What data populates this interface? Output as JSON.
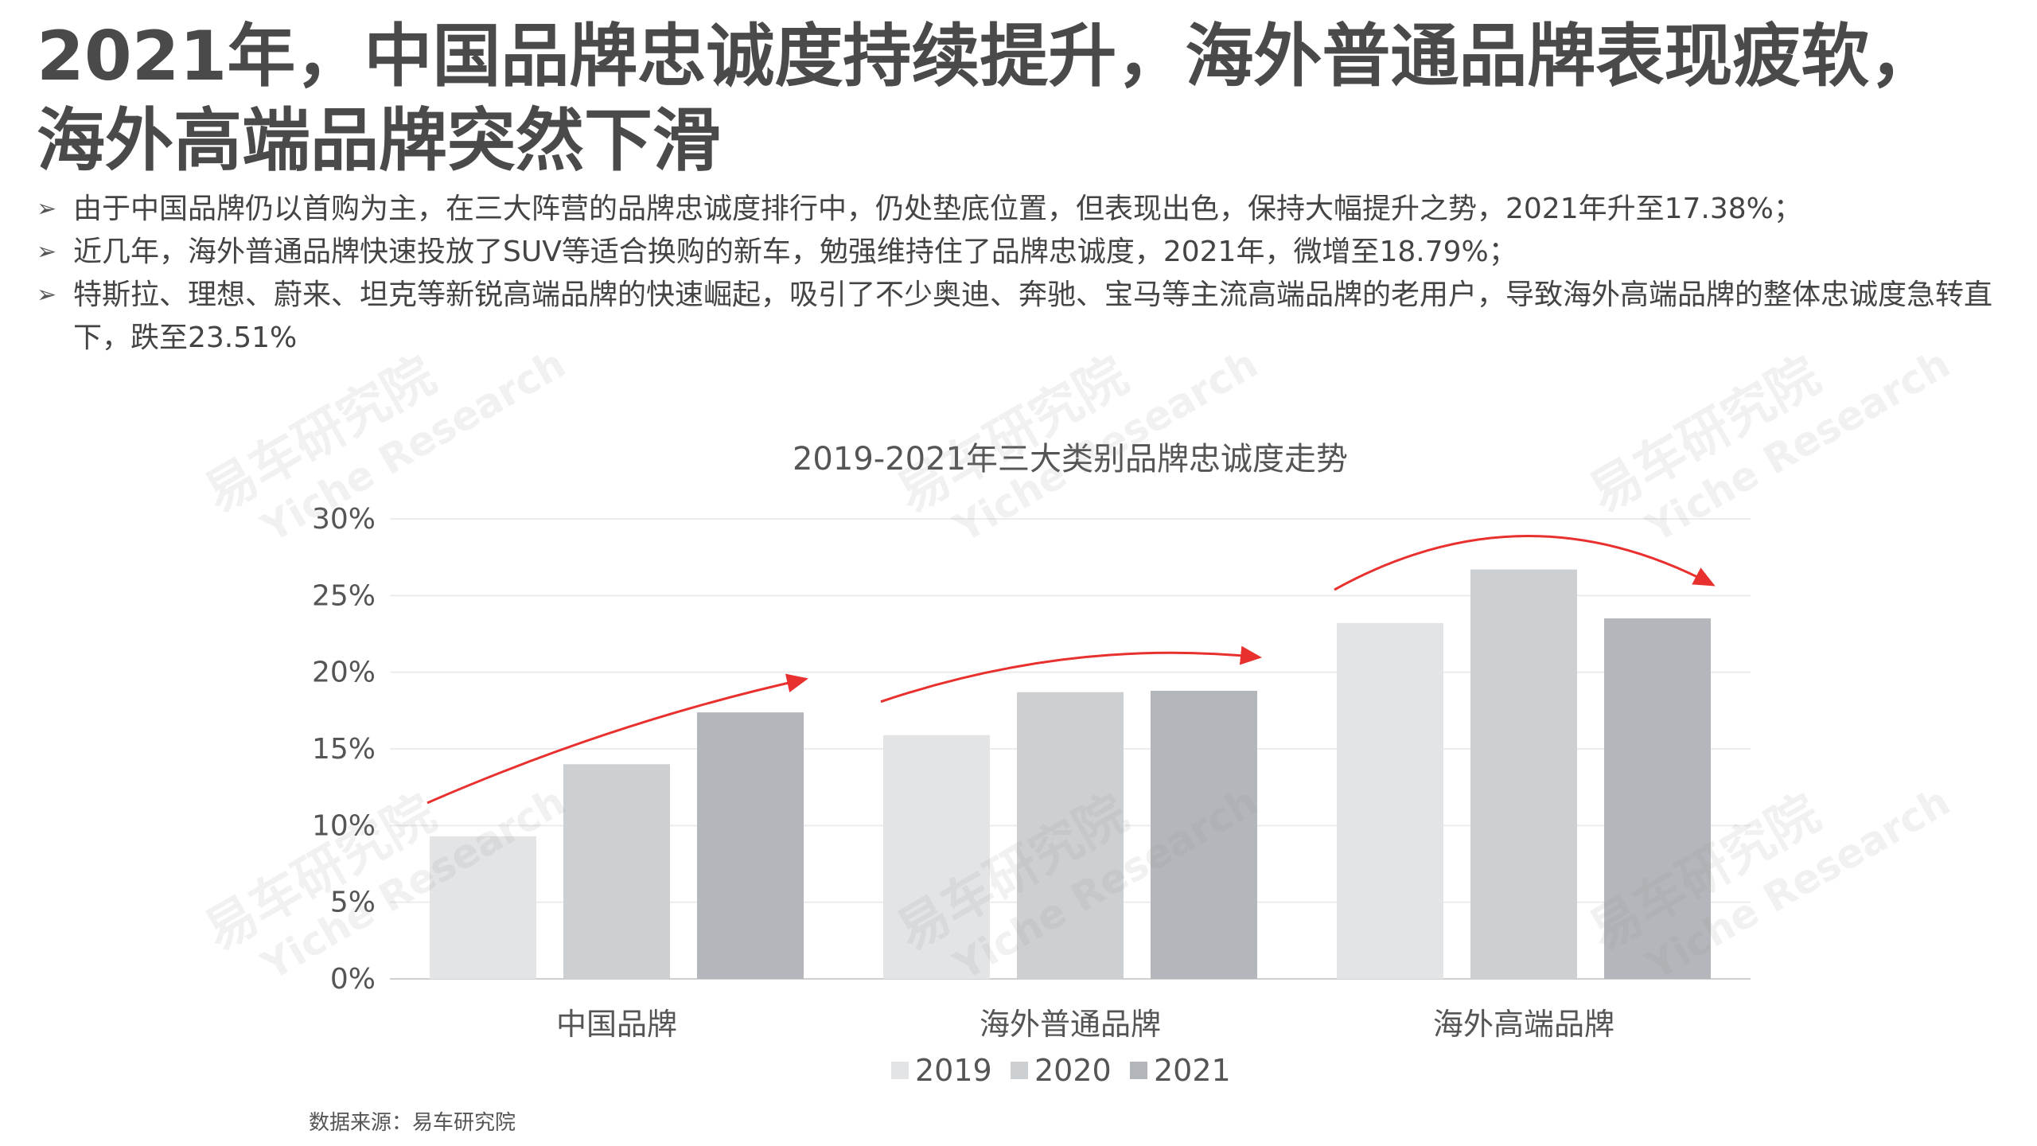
{
  "title": "2021年，中国品牌忠诚度持续提升，海外普通品牌表现疲软，海外高端品牌突然下滑",
  "bullets": [
    "由于中国品牌仍以首购为主，在三大阵营的品牌忠诚度排行中，仍处垫底位置，但表现出色，保持大幅提升之势，2021年升至17.38%；",
    "近几年，海外普通品牌快速投放了SUV等适合换购的新车，勉强维持住了品牌忠诚度，2021年，微增至18.79%；",
    "特斯拉、理想、蔚来、坦克等新锐高端品牌的快速崛起，吸引了不少奥迪、奔驰、宝马等主流高端品牌的老用户，导致海外高端品牌的整体忠诚度急转直下，跌至23.51%"
  ],
  "bullet_marker": "➢",
  "watermark": {
    "cn": "易车研究院",
    "en": "Yiche Research"
  },
  "source": "数据来源：易车研究院",
  "chart_data": {
    "type": "bar",
    "title": "2019-2021年三大类别品牌忠诚度走势",
    "categories": [
      "中国品牌",
      "海外普通品牌",
      "海外高端品牌"
    ],
    "series": [
      {
        "name": "2019",
        "values": [
          9.3,
          15.9,
          23.2
        ],
        "color": "#e3e4e6"
      },
      {
        "name": "2020",
        "values": [
          14.0,
          18.7,
          26.7
        ],
        "color": "#cdd0d3"
      },
      {
        "name": "2021",
        "values": [
          17.38,
          18.79,
          23.51
        ],
        "color": "#b3b7bb"
      }
    ],
    "ylim": [
      0,
      30
    ],
    "yticks": [
      "0%",
      "5%",
      "10%",
      "15%",
      "20%",
      "25%",
      "30%"
    ],
    "grid": true,
    "legend": "bottom",
    "trend_arrow_color": "#e8312f"
  }
}
